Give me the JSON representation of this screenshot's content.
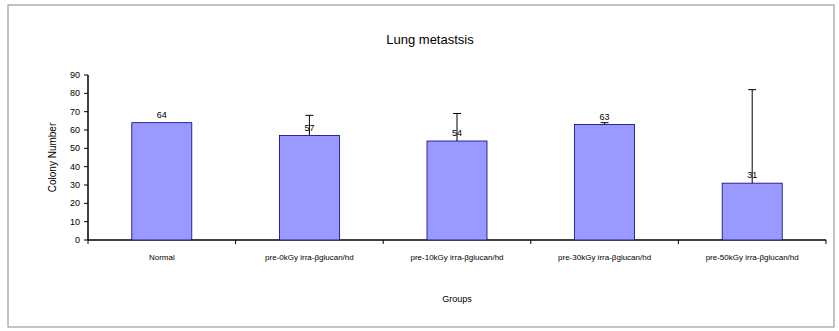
{
  "chart_data": {
    "type": "bar",
    "title": "Lung metastsis",
    "x_label": "Groups",
    "y_label": "Colony Number",
    "categories": [
      "Normal",
      "pre-0kGy irra-βglucan/hd",
      "pre-10kGy irra-βglucan/hd",
      "pre-30kGy irra-βglucan/hd",
      "pre-50kGy irra-βglucan/hd"
    ],
    "values": [
      64,
      57,
      54,
      63,
      31
    ],
    "errors": [
      null,
      11,
      15,
      1,
      51
    ],
    "color": "#9999ff",
    "ylim": [
      0,
      90
    ],
    "yticks": [
      0,
      10,
      20,
      30,
      40,
      50,
      60,
      70,
      80,
      90
    ],
    "grid": false,
    "data_labels": true
  }
}
